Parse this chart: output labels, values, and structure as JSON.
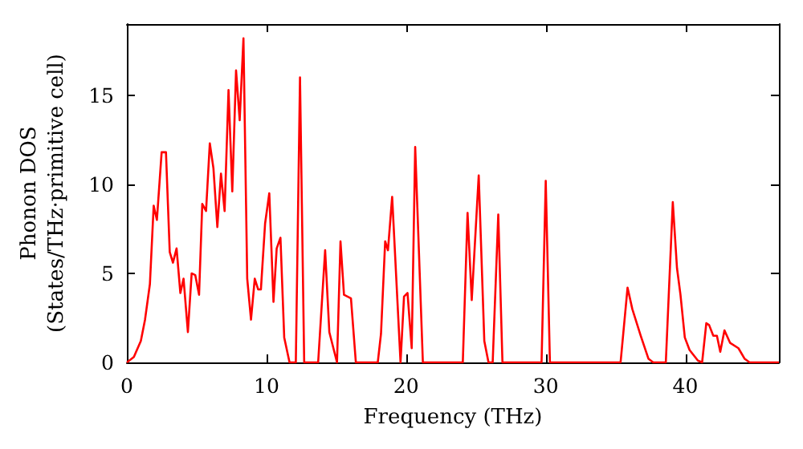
{
  "chart_data": {
    "type": "line",
    "xlabel": "Frequency (THz)",
    "ylabel": "Phonon DOS\n(States/THz·primitive cell)",
    "xlim": [
      0,
      46.7
    ],
    "xticks": [
      0,
      10,
      20,
      30,
      40
    ],
    "ylim": [
      0,
      19
    ],
    "yticks": [
      0,
      5,
      10,
      15
    ],
    "grid": false,
    "marker": "none",
    "line_style": "solid",
    "series": [
      {
        "color": "#ff0000",
        "x": [
          0,
          0.5,
          1.0,
          1.3,
          1.65,
          1.92,
          2.15,
          2.49,
          2.8,
          3.07,
          3.3,
          3.56,
          3.83,
          4.06,
          4.37,
          4.64,
          4.9,
          5.17,
          5.4,
          5.67,
          5.94,
          6.2,
          6.48,
          6.74,
          7.0,
          7.28,
          7.55,
          7.82,
          8.08,
          8.35,
          8.62,
          8.89,
          9.16,
          9.4,
          9.6,
          9.9,
          10.2,
          10.5,
          10.73,
          11.0,
          11.27,
          11.65,
          12.1,
          12.4,
          12.7,
          13.7,
          14.2,
          14.5,
          15.05,
          15.3,
          15.55,
          16.05,
          16.4,
          17.97,
          18.2,
          18.5,
          18.7,
          19.0,
          19.6,
          19.85,
          20.1,
          20.4,
          20.65,
          21.2,
          24.06,
          24.4,
          24.7,
          25.2,
          25.6,
          25.9,
          26.2,
          26.6,
          26.9,
          29.7,
          30.0,
          30.3,
          35.36,
          35.86,
          36.2,
          36.8,
          37.36,
          37.7,
          38.6,
          39.1,
          39.4,
          39.65,
          39.96,
          40.3,
          40.9,
          41.2,
          41.5,
          41.7,
          42.0,
          42.26,
          42.5,
          42.8,
          43.2,
          43.8,
          44.25,
          44.6,
          46.7
        ],
        "values": [
          0,
          0.3,
          1.2,
          2.4,
          4.4,
          8.8,
          8.0,
          11.8,
          11.8,
          6.2,
          5.6,
          6.4,
          3.9,
          4.7,
          1.7,
          5.0,
          4.9,
          3.8,
          8.9,
          8.5,
          12.3,
          10.9,
          7.6,
          10.6,
          8.5,
          15.3,
          9.6,
          16.4,
          13.6,
          18.2,
          4.7,
          2.4,
          4.7,
          4.1,
          4.1,
          7.8,
          9.5,
          3.4,
          6.4,
          7.0,
          1.4,
          0,
          0,
          16.0,
          0,
          0,
          6.3,
          1.7,
          0,
          6.8,
          3.8,
          3.6,
          0,
          0,
          1.6,
          6.8,
          6.3,
          9.3,
          0,
          3.7,
          3.9,
          0.8,
          12.1,
          0,
          0,
          8.4,
          3.5,
          10.5,
          1.2,
          0,
          0,
          8.3,
          0,
          0,
          10.2,
          0,
          0,
          4.2,
          3.0,
          1.5,
          0.2,
          0,
          0,
          9.0,
          5.3,
          3.8,
          1.4,
          0.7,
          0.1,
          0,
          2.2,
          2.1,
          1.5,
          1.5,
          0.6,
          1.8,
          1.1,
          0.8,
          0.2,
          0,
          0
        ]
      }
    ]
  }
}
